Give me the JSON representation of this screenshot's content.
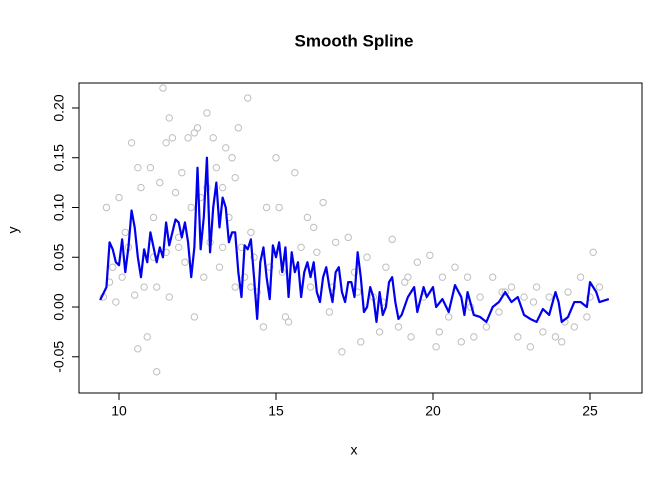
{
  "chart_data": {
    "type": "scatter",
    "title": "Smooth Spline",
    "xlabel": "x",
    "ylabel": "y",
    "xlim": [
      8.726,
      26.656
    ],
    "ylim": [
      -0.0864,
      0.2251
    ],
    "xticks": [
      10,
      15,
      20,
      25
    ],
    "yticks": [
      -0.05,
      {
        "value": 0,
        "label": "0.00"
      },
      0.05,
      {
        "value": 0.1,
        "label": "0.10"
      },
      0.15,
      {
        "value": 0.2,
        "label": "0.20"
      }
    ],
    "series": [
      {
        "type": "scatter",
        "color": "#bebebe",
        "x": [
          9.5,
          9.6,
          9.7,
          9.8,
          9.9,
          10.0,
          10.1,
          10.2,
          10.3,
          10.4,
          10.5,
          10.6,
          10.7,
          10.8,
          10.9,
          11.0,
          11.1,
          11.2,
          11.2,
          11.3,
          11.4,
          11.5,
          11.6,
          11.6,
          11.7,
          11.8,
          11.9,
          12.0,
          12.1,
          12.2,
          12.3,
          12.4,
          12.5,
          12.6,
          12.7,
          12.8,
          12.9,
          13.0,
          13.1,
          13.2,
          13.3,
          13.4,
          13.5,
          13.6,
          13.7,
          13.8,
          13.9,
          14.0,
          14.1,
          14.2,
          14.3,
          14.4,
          14.6,
          14.8,
          15.0,
          15.1,
          15.2,
          15.4,
          15.6,
          15.8,
          16.0,
          16.1,
          16.3,
          16.5,
          16.7,
          16.9,
          17.1,
          17.3,
          17.5,
          17.7,
          17.9,
          18.1,
          18.3,
          18.5,
          18.7,
          18.9,
          19.1,
          19.3,
          19.5,
          19.7,
          19.9,
          20.1,
          20.3,
          20.5,
          20.7,
          20.9,
          21.1,
          21.3,
          21.5,
          21.7,
          21.9,
          22.1,
          22.3,
          22.5,
          22.7,
          22.9,
          23.1,
          23.3,
          23.5,
          23.7,
          23.9,
          24.1,
          24.3,
          24.5,
          24.7,
          24.9,
          25.1,
          25.3,
          10.6,
          11.1,
          11.5,
          11.9,
          12.4,
          12.8,
          13.3,
          13.7,
          14.2,
          14.7,
          15.3,
          16.2,
          16.8,
          17.6,
          18.4,
          19.2,
          20.2,
          21.2,
          22.2,
          23.2,
          24.2,
          25.0
        ],
        "values": [
          0.01,
          0.1,
          0.025,
          0.04,
          0.005,
          0.11,
          0.03,
          0.075,
          0.06,
          0.165,
          0.012,
          -0.042,
          0.12,
          0.02,
          -0.03,
          0.14,
          0.09,
          -0.065,
          0.02,
          0.125,
          0.22,
          0.055,
          0.19,
          0.01,
          0.17,
          0.115,
          0.07,
          0.135,
          0.045,
          0.17,
          0.1,
          -0.01,
          0.18,
          0.11,
          0.03,
          0.195,
          0.065,
          0.17,
          0.14,
          0.04,
          0.12,
          0.16,
          0.09,
          0.15,
          0.02,
          0.18,
          0.06,
          0.03,
          0.21,
          0.075,
          0.05,
          0.015,
          -0.02,
          0.04,
          0.15,
          0.1,
          0.035,
          -0.015,
          0.135,
          0.06,
          0.09,
          0.02,
          0.055,
          0.105,
          -0.005,
          0.065,
          -0.045,
          0.07,
          0.035,
          -0.035,
          0.05,
          0.01,
          -0.025,
          0.04,
          0.068,
          -0.02,
          0.025,
          -0.03,
          0.045,
          0.01,
          0.052,
          -0.04,
          0.03,
          -0.01,
          0.04,
          -0.035,
          0.03,
          -0.03,
          0.01,
          -0.02,
          0.03,
          -0.005,
          0.015,
          0.02,
          -0.03,
          0.01,
          -0.04,
          0.02,
          -0.025,
          0.01,
          -0.03,
          -0.035,
          0.015,
          -0.02,
          0.03,
          -0.01,
          0.055,
          0.02,
          0.14,
          0.05,
          0.165,
          0.06,
          0.175,
          0.12,
          0.06,
          0.13,
          0.02,
          0.1,
          -0.01,
          0.08,
          0.02,
          0.015,
          0.005,
          0.03,
          -0.025,
          0.0,
          0.015,
          0.005,
          -0.015,
          0.01
        ]
      },
      {
        "type": "line",
        "color": "#0000ee",
        "x": [
          9.4,
          9.6,
          9.7,
          9.8,
          9.9,
          10.0,
          10.1,
          10.2,
          10.3,
          10.4,
          10.5,
          10.6,
          10.7,
          10.8,
          10.9,
          11.0,
          11.1,
          11.2,
          11.3,
          11.4,
          11.5,
          11.6,
          11.7,
          11.8,
          11.9,
          12.0,
          12.1,
          12.2,
          12.3,
          12.4,
          12.5,
          12.6,
          12.7,
          12.8,
          12.9,
          13.0,
          13.1,
          13.2,
          13.3,
          13.4,
          13.5,
          13.6,
          13.7,
          13.8,
          13.9,
          14.0,
          14.1,
          14.2,
          14.3,
          14.4,
          14.5,
          14.6,
          14.7,
          14.8,
          14.9,
          15.0,
          15.1,
          15.2,
          15.3,
          15.4,
          15.5,
          15.6,
          15.7,
          15.8,
          15.9,
          16.0,
          16.1,
          16.2,
          16.3,
          16.4,
          16.5,
          16.6,
          16.7,
          16.8,
          16.9,
          17.0,
          17.1,
          17.2,
          17.3,
          17.4,
          17.5,
          17.6,
          17.7,
          17.8,
          17.9,
          18.0,
          18.1,
          18.2,
          18.3,
          18.4,
          18.5,
          18.6,
          18.7,
          18.8,
          18.9,
          19.0,
          19.2,
          19.4,
          19.5,
          19.7,
          19.8,
          20.0,
          20.1,
          20.3,
          20.5,
          20.7,
          20.9,
          21.0,
          21.1,
          21.3,
          21.5,
          21.7,
          21.9,
          22.1,
          22.3,
          22.5,
          22.7,
          22.9,
          23.1,
          23.3,
          23.5,
          23.7,
          23.9,
          24.0,
          24.1,
          24.3,
          24.5,
          24.7,
          24.9,
          25.0,
          25.2,
          25.3,
          25.6
        ],
        "values": [
          0.007,
          0.02,
          0.065,
          0.058,
          0.045,
          0.042,
          0.068,
          0.035,
          0.06,
          0.097,
          0.08,
          0.05,
          0.03,
          0.058,
          0.045,
          0.075,
          0.06,
          0.045,
          0.06,
          0.05,
          0.085,
          0.062,
          0.075,
          0.088,
          0.085,
          0.07,
          0.085,
          0.065,
          0.03,
          0.06,
          0.14,
          0.058,
          0.09,
          0.15,
          0.055,
          0.1,
          0.125,
          0.08,
          0.11,
          0.1,
          0.065,
          0.075,
          0.075,
          0.035,
          0.01,
          0.062,
          0.058,
          0.068,
          0.03,
          -0.012,
          0.045,
          0.06,
          0.03,
          0.008,
          0.062,
          0.05,
          0.065,
          0.035,
          0.06,
          0.01,
          0.055,
          0.035,
          0.045,
          0.01,
          0.035,
          0.045,
          0.03,
          0.045,
          0.015,
          0.005,
          0.03,
          0.04,
          0.02,
          0.005,
          0.035,
          0.04,
          0.015,
          0.005,
          0.025,
          0.025,
          0.01,
          0.055,
          0.03,
          -0.005,
          0.0,
          0.02,
          0.01,
          -0.015,
          0.015,
          -0.008,
          0.0,
          0.025,
          0.03,
          0.005,
          -0.012,
          -0.008,
          0.01,
          0.02,
          -0.005,
          0.02,
          0.01,
          0.02,
          0.0,
          0.008,
          -0.005,
          0.022,
          0.01,
          -0.008,
          0.015,
          -0.008,
          -0.01,
          -0.015,
          0.0,
          0.005,
          0.015,
          0.005,
          0.01,
          -0.008,
          -0.012,
          -0.015,
          -0.002,
          -0.008,
          0.015,
          0.005,
          -0.015,
          -0.01,
          0.005,
          0.005,
          0.0,
          0.025,
          0.015,
          0.005,
          0.008
        ]
      }
    ]
  }
}
